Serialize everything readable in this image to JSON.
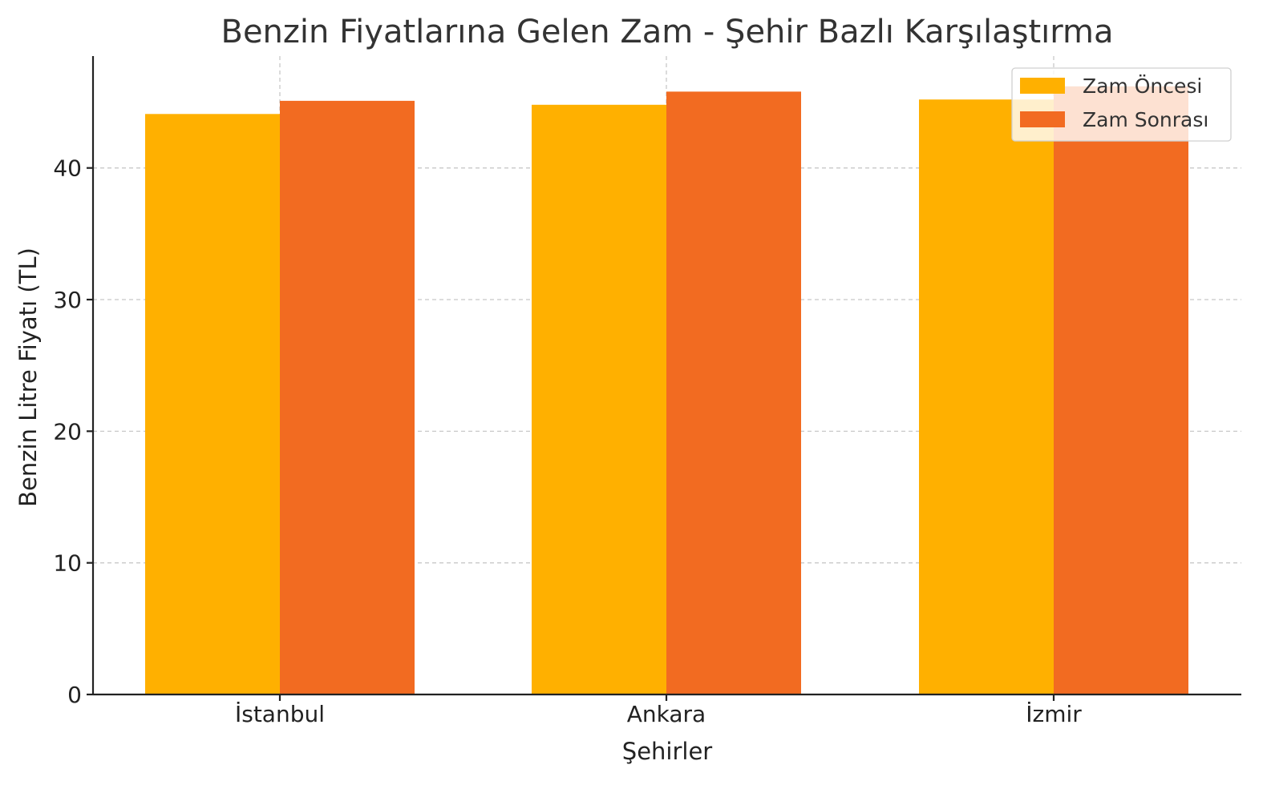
{
  "chart_data": {
    "type": "bar",
    "title": "Benzin Fiyatlarına Gelen Zam - Şehir Bazlı Karşılaştırma",
    "xlabel": "Şehirler",
    "ylabel": "Benzin Litre Fiyatı (TL)",
    "categories": [
      "İstanbul",
      "Ankara",
      "İzmir"
    ],
    "series": [
      {
        "name": "Zam Öncesi",
        "values": [
          44.1,
          44.8,
          45.2
        ],
        "color": "#FFB000"
      },
      {
        "name": "Zam Sonrası",
        "values": [
          45.1,
          45.8,
          46.2
        ],
        "color": "#F26B21"
      }
    ],
    "ylim": [
      0,
      48.5
    ],
    "yticks": [
      0,
      10,
      20,
      30,
      40
    ],
    "ytick_labels": [
      "0",
      "10",
      "20",
      "30",
      "40"
    ],
    "grid": true,
    "legend_position": "top-right"
  }
}
